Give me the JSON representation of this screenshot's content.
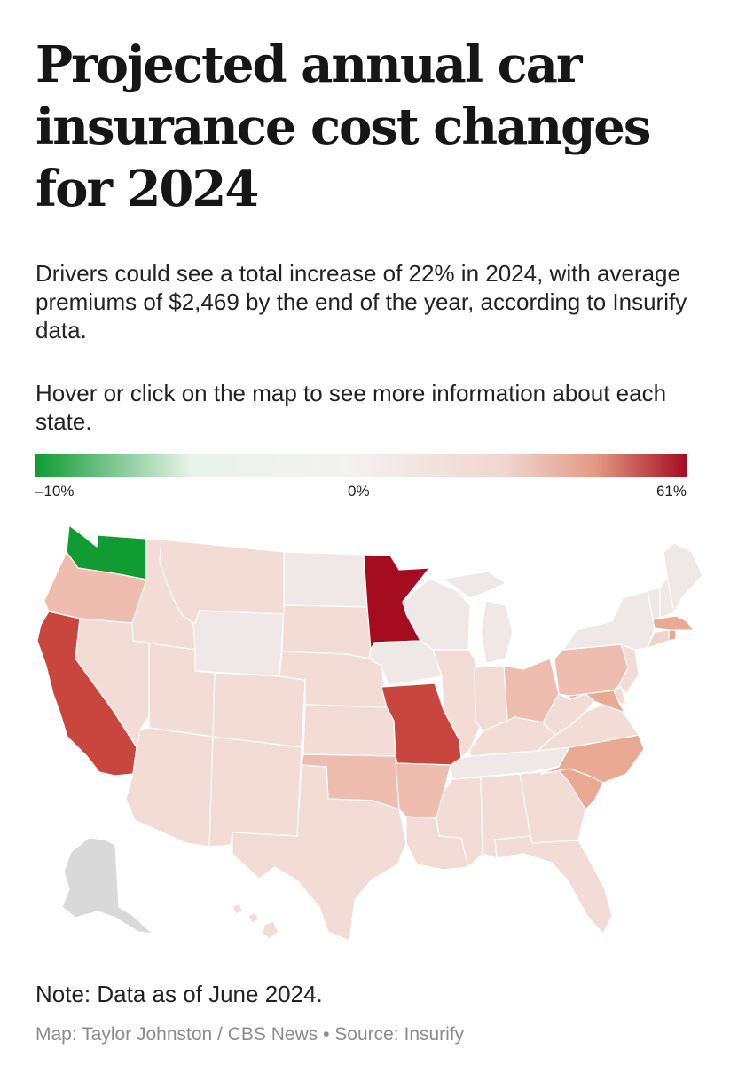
{
  "title": "Projected annual car insurance cost changes for 2024",
  "subtitle": "Drivers could see a total increase of 22% in 2024, with average premiums of $2,469 by the end of the year, according to Insurify data.",
  "instructions": "Hover or click on the map to see more information about each state.",
  "legend": {
    "min_label": "–10%",
    "mid_label": "0%",
    "max_label": "61%",
    "colors": {
      "min": "#109b33",
      "mid": "#f4f1f1",
      "max": "#a50c20"
    }
  },
  "map": {
    "no_data_color": "#d9d9d9",
    "colors": {
      "low": "#f3dcd6",
      "light": "#f2d3cb",
      "medium_light": "#eebdb0",
      "medium": "#e9a993",
      "strong": "#c8463e",
      "strongest": "#a50c20",
      "neutral": "#efe8e7",
      "negative": "#109b33"
    },
    "states": [
      {
        "name": "Washington",
        "category": "negative"
      },
      {
        "name": "Oregon",
        "category": "medium_light"
      },
      {
        "name": "California",
        "category": "strong"
      },
      {
        "name": "Idaho",
        "category": "low"
      },
      {
        "name": "Nevada",
        "category": "low"
      },
      {
        "name": "Montana",
        "category": "low"
      },
      {
        "name": "Wyoming",
        "category": "neutral"
      },
      {
        "name": "Utah",
        "category": "low"
      },
      {
        "name": "Arizona",
        "category": "low"
      },
      {
        "name": "Colorado",
        "category": "low"
      },
      {
        "name": "New Mexico",
        "category": "low"
      },
      {
        "name": "North Dakota",
        "category": "neutral"
      },
      {
        "name": "South Dakota",
        "category": "low"
      },
      {
        "name": "Nebraska",
        "category": "low"
      },
      {
        "name": "Kansas",
        "category": "low"
      },
      {
        "name": "Oklahoma",
        "category": "medium_light"
      },
      {
        "name": "Texas",
        "category": "low"
      },
      {
        "name": "Minnesota",
        "category": "strongest"
      },
      {
        "name": "Iowa",
        "category": "neutral"
      },
      {
        "name": "Missouri",
        "category": "strong"
      },
      {
        "name": "Arkansas",
        "category": "medium_light"
      },
      {
        "name": "Louisiana",
        "category": "low"
      },
      {
        "name": "Wisconsin",
        "category": "neutral"
      },
      {
        "name": "Illinois",
        "category": "low"
      },
      {
        "name": "Michigan",
        "category": "neutral"
      },
      {
        "name": "Indiana",
        "category": "low"
      },
      {
        "name": "Ohio",
        "category": "medium_light"
      },
      {
        "name": "Kentucky",
        "category": "low"
      },
      {
        "name": "Tennessee",
        "category": "neutral"
      },
      {
        "name": "Mississippi",
        "category": "low"
      },
      {
        "name": "Alabama",
        "category": "low"
      },
      {
        "name": "Georgia",
        "category": "low"
      },
      {
        "name": "Florida",
        "category": "low"
      },
      {
        "name": "South Carolina",
        "category": "medium"
      },
      {
        "name": "North Carolina",
        "category": "medium"
      },
      {
        "name": "Virginia",
        "category": "low"
      },
      {
        "name": "West Virginia",
        "category": "low"
      },
      {
        "name": "Maryland",
        "category": "medium"
      },
      {
        "name": "Delaware",
        "category": "low"
      },
      {
        "name": "Pennsylvania",
        "category": "medium_light"
      },
      {
        "name": "New Jersey",
        "category": "low"
      },
      {
        "name": "New York",
        "category": "neutral"
      },
      {
        "name": "Connecticut",
        "category": "light"
      },
      {
        "name": "Rhode Island",
        "category": "medium"
      },
      {
        "name": "Massachusetts",
        "category": "medium"
      },
      {
        "name": "Vermont",
        "category": "neutral"
      },
      {
        "name": "New Hampshire",
        "category": "neutral"
      },
      {
        "name": "Maine",
        "category": "neutral"
      },
      {
        "name": "Alaska",
        "category": "no_data"
      },
      {
        "name": "Hawaii",
        "category": "low"
      }
    ]
  },
  "note": "Note: Data as of June 2024.",
  "credit": "Map: Taylor Johnston / CBS News • Source: Insurify"
}
